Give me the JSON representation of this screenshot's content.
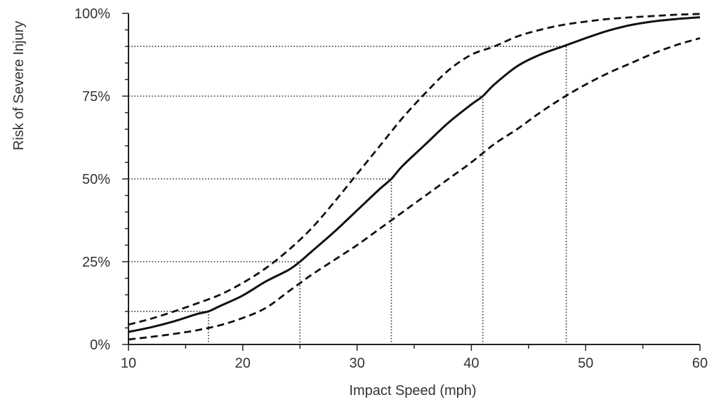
{
  "chart_data": {
    "type": "line",
    "title": "",
    "xlabel": "Impact Speed (mph)",
    "ylabel": "Risk of Severe Injury",
    "xlim": [
      10,
      60
    ],
    "ylim": [
      0,
      100
    ],
    "x_ticks": [
      10,
      20,
      30,
      40,
      50,
      60
    ],
    "x_tick_labels": [
      "10",
      "20",
      "30",
      "40",
      "50",
      "60"
    ],
    "y_ticks": [
      0,
      25,
      50,
      75,
      100
    ],
    "y_tick_labels": [
      "0%",
      "25%",
      "50%",
      "75%",
      "100%"
    ],
    "grid": false,
    "legend": "none",
    "series": [
      {
        "style": "solid",
        "x": [
          10,
          12,
          14,
          16,
          17,
          18,
          20,
          22,
          24,
          25,
          26,
          28,
          30,
          32,
          33,
          34,
          36,
          38,
          40,
          41,
          42,
          44,
          46,
          48,
          50,
          52,
          54,
          56,
          58,
          60
        ],
        "values": [
          3.8,
          5.2,
          7.0,
          9.2,
          10.0,
          11.6,
          14.8,
          19.0,
          22.5,
          25.0,
          28.0,
          34.0,
          40.5,
          47.0,
          50.0,
          54.0,
          60.5,
          67.0,
          72.5,
          75.0,
          78.5,
          84.0,
          87.5,
          90.0,
          92.5,
          94.8,
          96.5,
          97.6,
          98.3,
          98.8
        ]
      },
      {
        "style": "dashed",
        "x": [
          10,
          12,
          14,
          16,
          18,
          20,
          22,
          24,
          26,
          28,
          30,
          32,
          34,
          36,
          38,
          40,
          42,
          44,
          46,
          48,
          50,
          52,
          54,
          56,
          58,
          60
        ],
        "values": [
          6.0,
          7.8,
          10.0,
          12.4,
          15.0,
          18.6,
          23.0,
          28.5,
          35.0,
          43.0,
          51.5,
          60.0,
          68.5,
          76.0,
          82.8,
          87.5,
          90.0,
          93.0,
          95.0,
          96.5,
          97.5,
          98.3,
          98.8,
          99.2,
          99.6,
          99.8
        ]
      },
      {
        "style": "dashed",
        "x": [
          10,
          12,
          14,
          16,
          18,
          20,
          22,
          24,
          25,
          26,
          28,
          30,
          32,
          34,
          36,
          38,
          40,
          42,
          44,
          46,
          48,
          50,
          52,
          54,
          56,
          58,
          60
        ],
        "values": [
          1.5,
          2.3,
          3.2,
          4.3,
          5.8,
          8.0,
          11.0,
          16.0,
          18.5,
          21.0,
          25.5,
          30.0,
          35.0,
          40.0,
          45.0,
          50.0,
          55.0,
          60.5,
          65.0,
          70.0,
          74.5,
          78.5,
          82.0,
          85.0,
          88.0,
          90.5,
          92.5
        ]
      }
    ],
    "reference_lines": [
      {
        "x": 17,
        "y": 10
      },
      {
        "x": 25,
        "y": 25
      },
      {
        "x": 33,
        "y": 50
      },
      {
        "x": 41,
        "y": 75
      },
      {
        "x": 48.3,
        "y": 90
      }
    ]
  }
}
